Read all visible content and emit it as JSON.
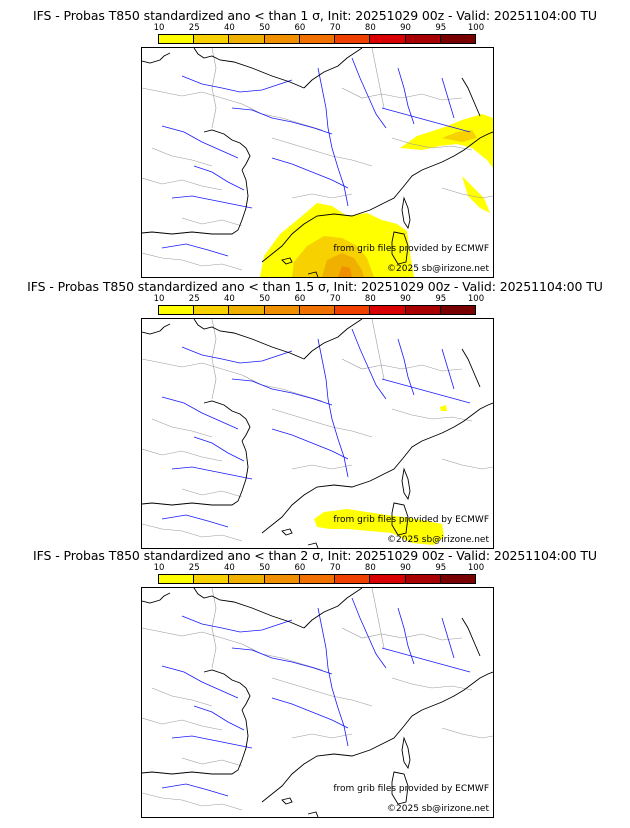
{
  "panels": [
    {
      "title": "IFS - Probas T850  standardized ano < than 1 σ, Init: 20251029 00z - Valid: 20251104:00 TU"
    },
    {
      "title": "IFS - Probas T850  standardized ano < than 1.5 σ, Init: 20251029 00z - Valid: 20251104:00 TU"
    },
    {
      "title": "IFS - Probas T850  standardized ano < than 2 σ, Init: 20251029 00z - Valid: 20251104:00 TU"
    }
  ],
  "scale": {
    "labels": [
      "10",
      "25",
      "40",
      "50",
      "60",
      "70",
      "80",
      "90",
      "95",
      "100"
    ],
    "colors": [
      "#ffff00",
      "#f7d200",
      "#f0b000",
      "#f09000",
      "#f07000",
      "#f04000",
      "#d80000",
      "#a80000",
      "#780000"
    ]
  },
  "credits": {
    "source": "from grib files provided by ECMWF",
    "copyright": "©2025 sb@irizone.net"
  },
  "map_colors": {
    "coast": "#000000",
    "rivers": "#1a1aff",
    "borders": "#9a9a9a"
  }
}
